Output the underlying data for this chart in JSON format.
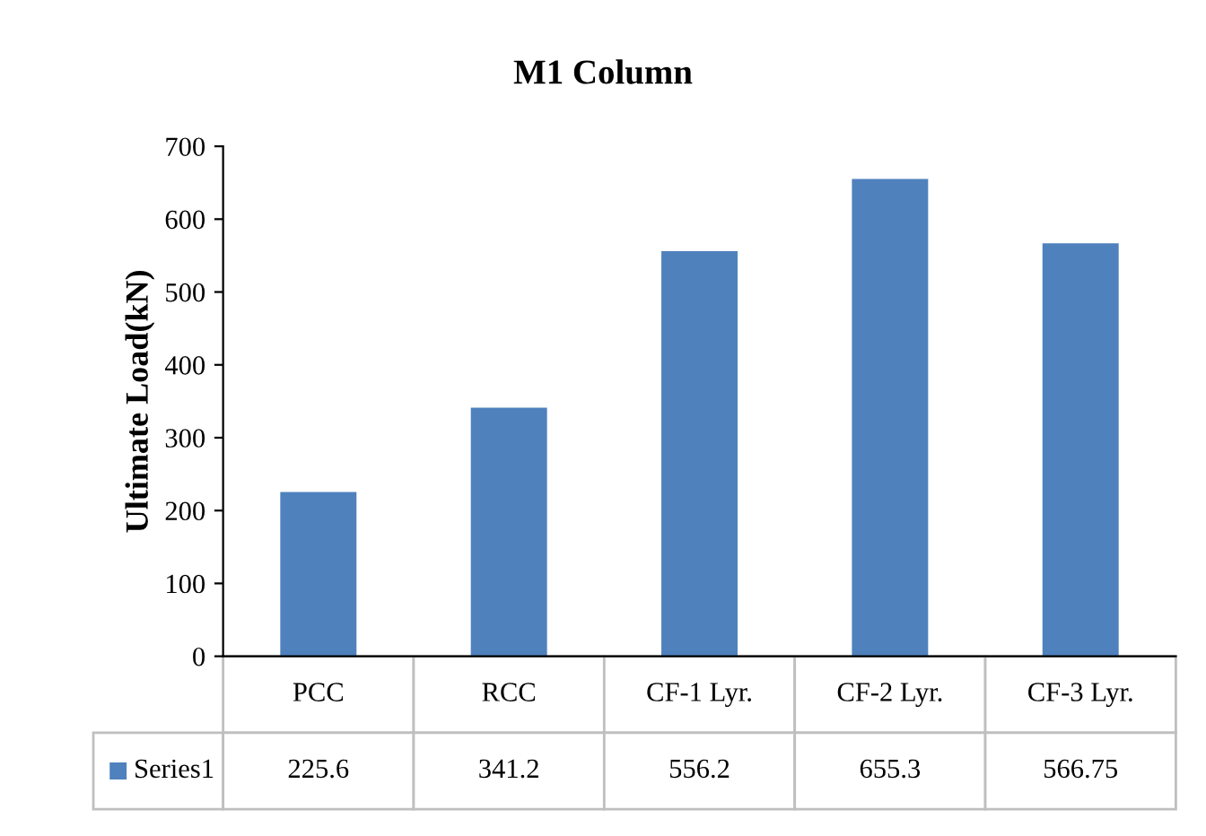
{
  "chart_data": {
    "type": "bar",
    "title": "M1 Column",
    "ylabel": "Ultimate Load(kN)",
    "categories": [
      "PCC",
      "RCC",
      "CF-1 Lyr.",
      "CF-2 Lyr.",
      "CF-3 Lyr."
    ],
    "series": [
      {
        "name": "Series1",
        "color": "#4f81bd",
        "values": [
          225.6,
          341.2,
          556.2,
          655.3,
          566.75
        ]
      }
    ],
    "ylim": [
      0,
      700
    ],
    "yticks": [
      0,
      100,
      200,
      300,
      400,
      500,
      600,
      700
    ],
    "grid": false,
    "data_labels": true
  }
}
